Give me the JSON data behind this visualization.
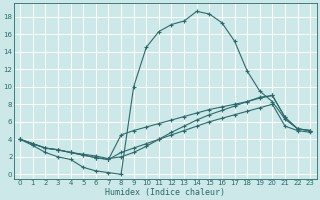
{
  "bg_color": "#cde8e8",
  "grid_color": "#b8d8d8",
  "line_color": "#2a6b6b",
  "xlabel": "Humidex (Indice chaleur)",
  "xlim": [
    -0.5,
    23.5
  ],
  "ylim": [
    -0.5,
    19.5
  ],
  "yticks": [
    0,
    2,
    4,
    6,
    8,
    10,
    12,
    14,
    16,
    18
  ],
  "xticks": [
    0,
    1,
    2,
    3,
    4,
    5,
    6,
    7,
    8,
    9,
    10,
    11,
    12,
    13,
    14,
    15,
    16,
    17,
    18,
    19,
    20,
    21,
    22,
    23
  ],
  "series1_x": [
    0,
    1,
    2,
    3,
    4,
    5,
    6,
    7,
    8,
    9,
    10,
    11,
    12,
    13,
    14,
    15,
    16,
    17,
    18,
    19,
    20,
    21,
    22,
    23
  ],
  "series1_y": [
    4.0,
    3.3,
    2.5,
    2.0,
    1.7,
    0.8,
    0.4,
    0.2,
    0.0,
    10.0,
    14.5,
    16.3,
    17.1,
    17.5,
    18.6,
    18.3,
    17.3,
    15.2,
    11.8,
    9.5,
    8.3,
    6.3,
    5.2,
    5.0
  ],
  "series2_x": [
    0,
    1,
    2,
    3,
    4,
    5,
    6,
    7,
    8,
    9,
    10,
    11,
    12,
    13,
    14,
    15,
    16,
    17,
    18,
    19,
    20,
    21,
    22,
    23
  ],
  "series2_y": [
    4.0,
    3.5,
    3.0,
    2.8,
    2.5,
    2.3,
    2.1,
    1.8,
    2.0,
    2.5,
    3.2,
    4.0,
    4.8,
    5.5,
    6.2,
    6.8,
    7.3,
    7.8,
    8.3,
    8.8,
    9.0,
    6.5,
    5.2,
    5.0
  ],
  "series3_x": [
    0,
    1,
    2,
    3,
    4,
    5,
    6,
    7,
    8,
    9,
    10,
    11,
    12,
    13,
    14,
    15,
    16,
    17,
    18,
    19,
    20,
    21,
    22,
    23
  ],
  "series3_y": [
    4.0,
    3.5,
    3.0,
    2.8,
    2.5,
    2.2,
    1.9,
    1.7,
    4.5,
    5.0,
    5.4,
    5.8,
    6.2,
    6.6,
    7.0,
    7.4,
    7.7,
    8.0,
    8.3,
    8.7,
    9.0,
    6.5,
    5.2,
    5.0
  ],
  "series4_x": [
    0,
    1,
    2,
    3,
    4,
    5,
    6,
    7,
    8,
    9,
    10,
    11,
    12,
    13,
    14,
    15,
    16,
    17,
    18,
    19,
    20,
    21,
    22,
    23
  ],
  "series4_y": [
    4.0,
    3.5,
    3.0,
    2.8,
    2.5,
    2.2,
    1.9,
    1.7,
    2.5,
    3.0,
    3.5,
    4.0,
    4.5,
    5.0,
    5.5,
    6.0,
    6.4,
    6.8,
    7.2,
    7.6,
    8.0,
    5.5,
    5.0,
    4.8
  ]
}
